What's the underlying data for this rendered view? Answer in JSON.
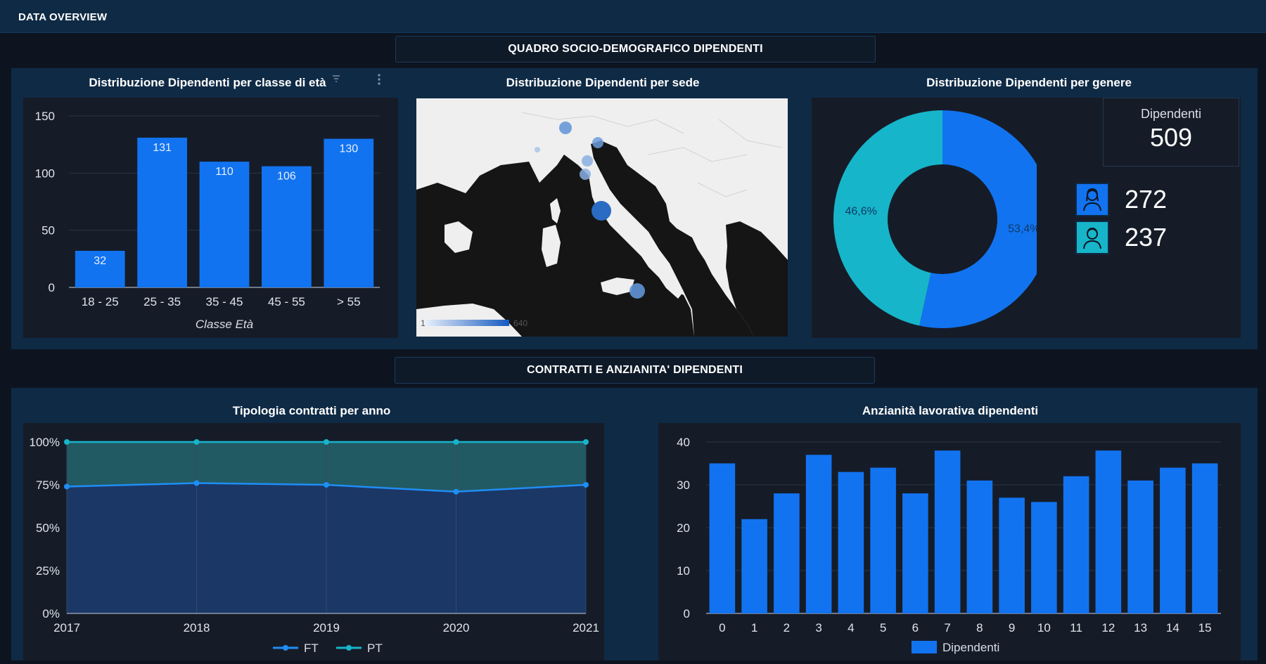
{
  "header": {
    "title": "DATA OVERVIEW"
  },
  "sections": {
    "socio": "QUADRO SOCIO-DEMOGRAFICO DIPENDENTI",
    "contratti": "CONTRATTI E ANZIANITA' DIPENDENTI"
  },
  "colors": {
    "bar": "#1273f0",
    "teal": "#17b5c9",
    "panel": "#0f2a45",
    "card": "#151c28"
  },
  "age_chart": {
    "title": "Distribuzione Dipendenti per classe di età",
    "menu_icon": "more-vert-icon",
    "sort_icon": "sort-icon"
  },
  "map_chart": {
    "title": "Distribuzione Dipendenti per sede",
    "legend_min": "1",
    "legend_max": "640"
  },
  "gender_chart": {
    "title": "Distribuzione Dipendenti per genere",
    "kpi_label": "Dipendenti",
    "kpi_value": "509",
    "female_count": "272",
    "male_count": "237",
    "female_icon": "female-user-icon",
    "male_icon": "male-user-icon"
  },
  "contracts_chart": {
    "title": "Tipologia contratti per anno",
    "legend_ft": "FT",
    "legend_pt": "PT"
  },
  "seniority_chart": {
    "title": "Anzianità lavorativa dipendenti",
    "legend_label": "Dipendenti"
  },
  "chart_data": [
    {
      "type": "bar",
      "title": "Distribuzione Dipendenti per classe di età",
      "categories": [
        "18 - 25",
        "25 - 35",
        "35 - 45",
        "45 - 55",
        "> 55"
      ],
      "values": [
        32,
        131,
        110,
        106,
        130
      ],
      "xlabel": "Classe Età",
      "ylabel": "",
      "ylim": [
        0,
        150
      ],
      "yticks": [
        "0",
        "50",
        "100",
        "150"
      ],
      "grid": true
    },
    {
      "type": "pie",
      "title": "Distribuzione Dipendenti per genere",
      "slices": [
        {
          "value": 53.4,
          "label": "53,4%",
          "color": "#1273f0"
        },
        {
          "value": 46.6,
          "label": "46,6%",
          "color": "#17b5c9"
        }
      ],
      "donut": true
    },
    {
      "type": "area",
      "title": "Tipologia contratti per anno",
      "x": [
        "2017",
        "2018",
        "2019",
        "2020",
        "2021"
      ],
      "yticks": [
        "0%",
        "25%",
        "50%",
        "75%",
        "100%"
      ],
      "ylim": [
        0,
        100
      ],
      "series": [
        {
          "name": "FT",
          "values": [
            74,
            76,
            75,
            71,
            75
          ],
          "color": "#1f8ef5"
        },
        {
          "name": "PT",
          "values": [
            100,
            100,
            100,
            100,
            100
          ],
          "color": "#17b5c9"
        }
      ],
      "legend": "bottom"
    },
    {
      "type": "bar",
      "title": "Anzianità lavorativa dipendenti",
      "categories": [
        "0",
        "1",
        "2",
        "3",
        "4",
        "5",
        "6",
        "7",
        "8",
        "9",
        "10",
        "11",
        "12",
        "13",
        "14",
        "15"
      ],
      "series": [
        {
          "name": "Dipendenti",
          "values": [
            35,
            22,
            28,
            37,
            33,
            34,
            28,
            38,
            31,
            27,
            26,
            32,
            38,
            31,
            34,
            35
          ]
        }
      ],
      "ylim": [
        0,
        40
      ],
      "yticks": [
        "0",
        "10",
        "20",
        "30",
        "40"
      ],
      "legend": "bottom",
      "grid": true
    }
  ]
}
